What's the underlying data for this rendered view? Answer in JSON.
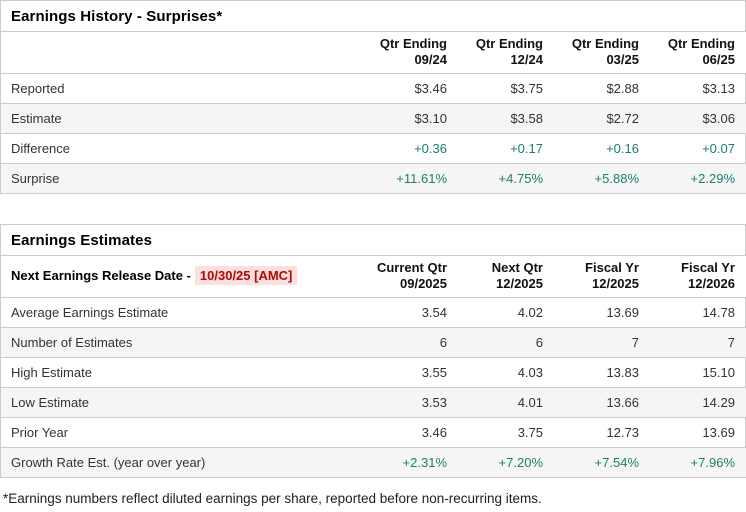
{
  "colors": {
    "positive_green": "#1a7f6e",
    "alert_red": "#c40000",
    "alert_red_background": "#fbe0e0",
    "row_alternate": "#f5f5f5",
    "border": "#cccccc"
  },
  "history": {
    "title": "Earnings History - Surprises*",
    "columns": [
      {
        "line1": "Qtr Ending",
        "line2": "09/24"
      },
      {
        "line1": "Qtr Ending",
        "line2": "12/24"
      },
      {
        "line1": "Qtr Ending",
        "line2": "03/25"
      },
      {
        "line1": "Qtr Ending",
        "line2": "06/25"
      }
    ],
    "rows": [
      {
        "label": "Reported",
        "values": [
          "$3.46",
          "$3.75",
          "$2.88",
          "$3.13"
        ]
      },
      {
        "label": "Estimate",
        "values": [
          "$3.10",
          "$3.58",
          "$2.72",
          "$3.06"
        ]
      },
      {
        "label": "Difference",
        "values": [
          "+0.36",
          "+0.17",
          "+0.16",
          "+0.07"
        ]
      },
      {
        "label": "Surprise",
        "values": [
          "+11.61%",
          "+4.75%",
          "+5.88%",
          "+2.29%"
        ]
      }
    ]
  },
  "estimates": {
    "title": "Earnings Estimates",
    "release_label": "Next Earnings Release Date -",
    "release_date": "10/30/25 [AMC]",
    "columns": [
      {
        "line1": "Current Qtr",
        "line2": "09/2025"
      },
      {
        "line1": "Next Qtr",
        "line2": "12/2025"
      },
      {
        "line1": "Fiscal Yr",
        "line2": "12/2025"
      },
      {
        "line1": "Fiscal Yr",
        "line2": "12/2026"
      }
    ],
    "rows": [
      {
        "label": "Average Earnings Estimate",
        "values": [
          "3.54",
          "4.02",
          "13.69",
          "14.78"
        ]
      },
      {
        "label": "Number of Estimates",
        "values": [
          "6",
          "6",
          "7",
          "7"
        ]
      },
      {
        "label": "High Estimate",
        "values": [
          "3.55",
          "4.03",
          "13.83",
          "15.10"
        ]
      },
      {
        "label": "Low Estimate",
        "values": [
          "3.53",
          "4.01",
          "13.66",
          "14.29"
        ]
      },
      {
        "label": "Prior Year",
        "values": [
          "3.46",
          "3.75",
          "12.73",
          "13.69"
        ]
      },
      {
        "label": "Growth Rate Est. (year over year)",
        "values": [
          "+2.31%",
          "+7.20%",
          "+7.54%",
          "+7.96%"
        ]
      }
    ]
  },
  "footnote": "*Earnings numbers reflect diluted earnings per share, reported before non-recurring items."
}
